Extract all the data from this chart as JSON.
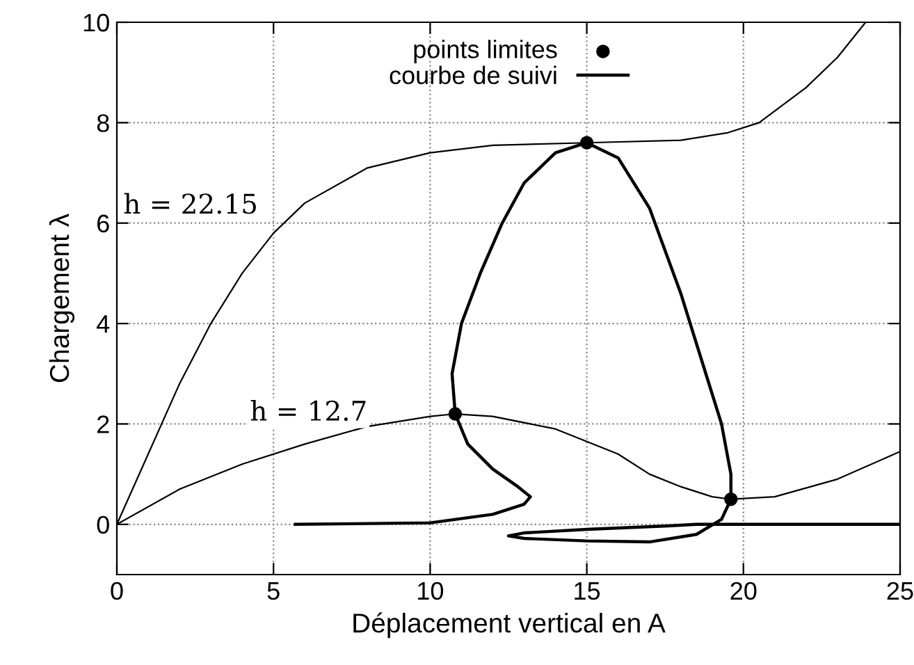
{
  "chart_data": {
    "type": "line",
    "xlabel": "Déplacement vertical en A",
    "ylabel": "Chargement λ",
    "xlim": [
      0,
      25
    ],
    "ylim": [
      -1,
      10
    ],
    "xticks": [
      0,
      5,
      10,
      15,
      20,
      25
    ],
    "yticks": [
      0,
      2,
      4,
      6,
      8,
      10
    ],
    "grid": true,
    "legend": "top",
    "series": [
      {
        "name": "h = 22.15",
        "type": "line",
        "color": "#000000",
        "x": [
          0,
          1,
          2,
          3,
          4,
          5,
          6,
          8,
          10,
          12,
          15,
          18,
          19.5,
          20.5,
          22,
          23,
          23.9
        ],
        "values": [
          0,
          1.4,
          2.8,
          4,
          5,
          5.8,
          6.4,
          7.1,
          7.4,
          7.55,
          7.6,
          7.65,
          7.8,
          8.0,
          8.7,
          9.3,
          10
        ]
      },
      {
        "name": "h = 12.7",
        "type": "line",
        "color": "#000000",
        "x": [
          0,
          2,
          4,
          6,
          8,
          10,
          10.8,
          12,
          14,
          16,
          17,
          18,
          19,
          19.6,
          21,
          23,
          25
        ],
        "values": [
          0,
          0.7,
          1.2,
          1.6,
          1.95,
          2.15,
          2.2,
          2.15,
          1.9,
          1.4,
          1.0,
          0.75,
          0.55,
          0.5,
          0.55,
          0.9,
          1.45
        ]
      },
      {
        "name": "courbe de suivi",
        "color": "#000000",
        "x": [
          5.7,
          10,
          12,
          13,
          13.2,
          12.8,
          12,
          11.2,
          10.8,
          10.7,
          11,
          11.6,
          12.3,
          13,
          14,
          15,
          16,
          17,
          18,
          18.8,
          19.3,
          19.6,
          19.6,
          19.3,
          18.5,
          17,
          15,
          13,
          12.5,
          13,
          15,
          17.6,
          18.5,
          25
        ],
        "values": [
          0,
          0.03,
          0.2,
          0.4,
          0.55,
          0.75,
          1.1,
          1.6,
          2.2,
          3,
          4,
          5,
          6,
          6.8,
          7.4,
          7.6,
          7.3,
          6.3,
          4.6,
          3,
          2,
          1,
          0.5,
          0.1,
          -0.2,
          -0.35,
          -0.33,
          -0.28,
          -0.23,
          -0.17,
          -0.1,
          -0.03,
          0,
          0
        ]
      },
      {
        "name": "points limites",
        "type": "scatter",
        "marker": "circle",
        "color": "#000000",
        "x": [
          10.8,
          15,
          19.6
        ],
        "values": [
          2.2,
          7.6,
          0.5
        ]
      }
    ]
  }
}
